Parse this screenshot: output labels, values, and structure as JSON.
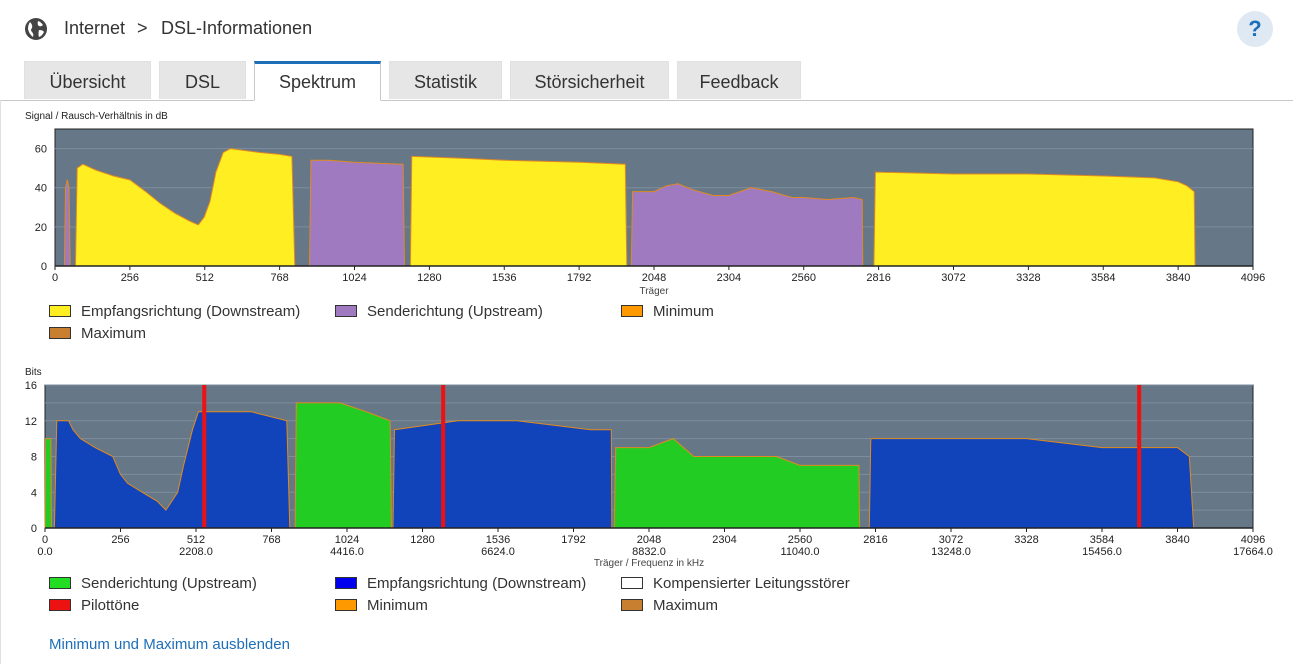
{
  "breadcrumb": {
    "root": "Internet",
    "separator": ">",
    "current": "DSL-Informationen"
  },
  "help_label": "?",
  "tabs": [
    {
      "label": "Übersicht",
      "active": false
    },
    {
      "label": "DSL",
      "active": false
    },
    {
      "label": "Spektrum",
      "active": true
    },
    {
      "label": "Statistik",
      "active": false
    },
    {
      "label": "Störsicherheit",
      "active": false
    },
    {
      "label": "Feedback",
      "active": false
    }
  ],
  "snr_legend": [
    {
      "label": "Empfangsrichtung (Downstream)",
      "color": "#ffee22"
    },
    {
      "label": "Senderichtung (Upstream)",
      "color": "#a07ac0"
    },
    {
      "label": "Minimum",
      "color": "#ff9900"
    },
    {
      "label": "Maximum",
      "color": "#c87f30"
    }
  ],
  "bits_legend": [
    {
      "label": "Senderichtung (Upstream)",
      "color": "#22dd22"
    },
    {
      "label": "Empfangsrichtung (Downstream)",
      "color": "#0000ee"
    },
    {
      "label": "Kompensierter Leitungsstörer",
      "color": "#ffffff"
    },
    {
      "label": "Pilottöne",
      "color": "#ee1111"
    },
    {
      "label": "Minimum",
      "color": "#ff9900"
    },
    {
      "label": "Maximum",
      "color": "#c87f30"
    }
  ],
  "toggle_link": "Minimum und Maximum ausblenden",
  "chart_data": [
    {
      "type": "area",
      "ylabel": "Signal / Rausch-Verhältnis in dB",
      "xlabel": "Träger",
      "xlim": [
        0,
        4096
      ],
      "ylim": [
        0,
        70
      ],
      "x_ticks": [
        0,
        256,
        512,
        768,
        1024,
        1280,
        1536,
        1792,
        2048,
        2304,
        2560,
        2816,
        3072,
        3328,
        3584,
        3840,
        4096
      ],
      "y_ticks": [
        0,
        20,
        40,
        60
      ],
      "background": "#667788",
      "series": [
        {
          "name": "Senderichtung (Upstream)",
          "color": "#a07ac0",
          "points": [
            [
              32,
              0
            ],
            [
              36,
              40
            ],
            [
              42,
              44
            ],
            [
              48,
              40
            ],
            [
              52,
              0
            ]
          ]
        },
        {
          "name": "Empfangsrichtung (Downstream)",
          "color": "#ffee22",
          "points": [
            [
              70,
              0
            ],
            [
              76,
              50
            ],
            [
              95,
              52
            ],
            [
              140,
              49
            ],
            [
              200,
              46
            ],
            [
              256,
              44
            ],
            [
              310,
              38
            ],
            [
              360,
              32
            ],
            [
              410,
              27
            ],
            [
              460,
              23
            ],
            [
              490,
              21
            ],
            [
              510,
              25
            ],
            [
              530,
              33
            ],
            [
              550,
              48
            ],
            [
              575,
              58
            ],
            [
              600,
              60
            ],
            [
              700,
              58
            ],
            [
              768,
              57
            ],
            [
              810,
              56
            ],
            [
              820,
              0
            ]
          ]
        },
        {
          "name": "Senderichtung (Upstream)",
          "color": "#a07ac0",
          "points": [
            [
              870,
              0
            ],
            [
              875,
              54
            ],
            [
              935,
              54
            ],
            [
              1024,
              53
            ],
            [
              1190,
              52
            ],
            [
              1195,
              0
            ]
          ]
        },
        {
          "name": "Empfangsrichtung (Downstream)",
          "color": "#ffee22",
          "points": [
            [
              1215,
              0
            ],
            [
              1220,
              56
            ],
            [
              1400,
              55
            ],
            [
              1536,
              54
            ],
            [
              1792,
              53
            ],
            [
              1950,
              52
            ],
            [
              1955,
              0
            ]
          ]
        },
        {
          "name": "Senderichtung (Upstream)",
          "color": "#a07ac0",
          "points": [
            [
              1970,
              0
            ],
            [
              1975,
              38
            ],
            [
              2048,
              38
            ],
            [
              2090,
              41
            ],
            [
              2130,
              42
            ],
            [
              2180,
              39
            ],
            [
              2250,
              36
            ],
            [
              2304,
              36
            ],
            [
              2380,
              40
            ],
            [
              2450,
              38
            ],
            [
              2520,
              35
            ],
            [
              2560,
              35
            ],
            [
              2640,
              34
            ],
            [
              2730,
              35
            ],
            [
              2760,
              34
            ],
            [
              2762,
              0
            ]
          ]
        },
        {
          "name": "Empfangsrichtung (Downstream)",
          "color": "#ffee22",
          "points": [
            [
              2800,
              0
            ],
            [
              2805,
              48
            ],
            [
              3072,
              47
            ],
            [
              3328,
              47
            ],
            [
              3584,
              46
            ],
            [
              3760,
              45
            ],
            [
              3840,
              43
            ],
            [
              3870,
              41
            ],
            [
              3895,
              38
            ],
            [
              3898,
              0
            ]
          ]
        }
      ]
    },
    {
      "type": "area",
      "ylabel": "Bits",
      "xlabel": "Träger / Frequenz in kHz",
      "xlim": [
        0,
        4096
      ],
      "ylim": [
        0,
        16
      ],
      "x_ticks": [
        0,
        256,
        512,
        768,
        1024,
        1280,
        1536,
        1792,
        2048,
        2304,
        2560,
        2816,
        3072,
        3328,
        3584,
        3840,
        4096
      ],
      "freq_ticks": [
        {
          "carrier": 0,
          "label": "0.0"
        },
        {
          "carrier": 512,
          "label": "2208.0"
        },
        {
          "carrier": 1024,
          "label": "4416.0"
        },
        {
          "carrier": 1536,
          "label": "6624.0"
        },
        {
          "carrier": 2048,
          "label": "8832.0"
        },
        {
          "carrier": 2560,
          "label": "11040.0"
        },
        {
          "carrier": 3072,
          "label": "13248.0"
        },
        {
          "carrier": 3584,
          "label": "15456.0"
        },
        {
          "carrier": 4096,
          "label": "17664.0"
        }
      ],
      "y_ticks": [
        0,
        4,
        8,
        12,
        16
      ],
      "background": "#667788",
      "series": [
        {
          "name": "Senderichtung (Upstream)",
          "color": "#22cc22",
          "points": [
            [
              0,
              0
            ],
            [
              2,
              10
            ],
            [
              20,
              10
            ],
            [
              22,
              0
            ]
          ]
        },
        {
          "name": "Empfangsrichtung (Downstream)",
          "color": "#1144bb",
          "points": [
            [
              32,
              0
            ],
            [
              40,
              12
            ],
            [
              80,
              12
            ],
            [
              95,
              11
            ],
            [
              120,
              10
            ],
            [
              170,
              9
            ],
            [
              230,
              8
            ],
            [
              256,
              6
            ],
            [
              280,
              5
            ],
            [
              330,
              4
            ],
            [
              380,
              3
            ],
            [
              410,
              2
            ],
            [
              430,
              3
            ],
            [
              450,
              4
            ],
            [
              470,
              7
            ],
            [
              500,
              11
            ],
            [
              520,
              13
            ],
            [
              600,
              13
            ],
            [
              700,
              13
            ],
            [
              820,
              12
            ],
            [
              830,
              0
            ]
          ]
        },
        {
          "name": "Senderichtung (Upstream)",
          "color": "#22cc22",
          "points": [
            [
              848,
              0
            ],
            [
              852,
              14
            ],
            [
              940,
              14
            ],
            [
              1000,
              14
            ],
            [
              1090,
              13
            ],
            [
              1170,
              12
            ],
            [
              1175,
              0
            ]
          ]
        },
        {
          "name": "Empfangsrichtung (Downstream)",
          "color": "#1144bb",
          "points": [
            [
              1180,
              0
            ],
            [
              1185,
              11
            ],
            [
              1400,
              12
            ],
            [
              1600,
              12
            ],
            [
              1850,
              11
            ],
            [
              1920,
              11
            ],
            [
              1922,
              0
            ]
          ]
        },
        {
          "name": "Senderichtung (Upstream)",
          "color": "#22cc22",
          "points": [
            [
              1930,
              0
            ],
            [
              1935,
              9
            ],
            [
              2048,
              9
            ],
            [
              2130,
              10
            ],
            [
              2200,
              8
            ],
            [
              2304,
              8
            ],
            [
              2400,
              8
            ],
            [
              2480,
              8
            ],
            [
              2560,
              7
            ],
            [
              2660,
              7
            ],
            [
              2760,
              7
            ],
            [
              2762,
              0
            ]
          ]
        },
        {
          "name": "Empfangsrichtung (Downstream)",
          "color": "#1144bb",
          "points": [
            [
              2795,
              0
            ],
            [
              2800,
              10
            ],
            [
              3072,
              10
            ],
            [
              3328,
              10
            ],
            [
              3584,
              9
            ],
            [
              3700,
              9
            ],
            [
              3840,
              9
            ],
            [
              3880,
              8
            ],
            [
              3895,
              0
            ]
          ]
        }
      ],
      "pilot_tones": [
        540,
        1350,
        3710
      ]
    }
  ]
}
